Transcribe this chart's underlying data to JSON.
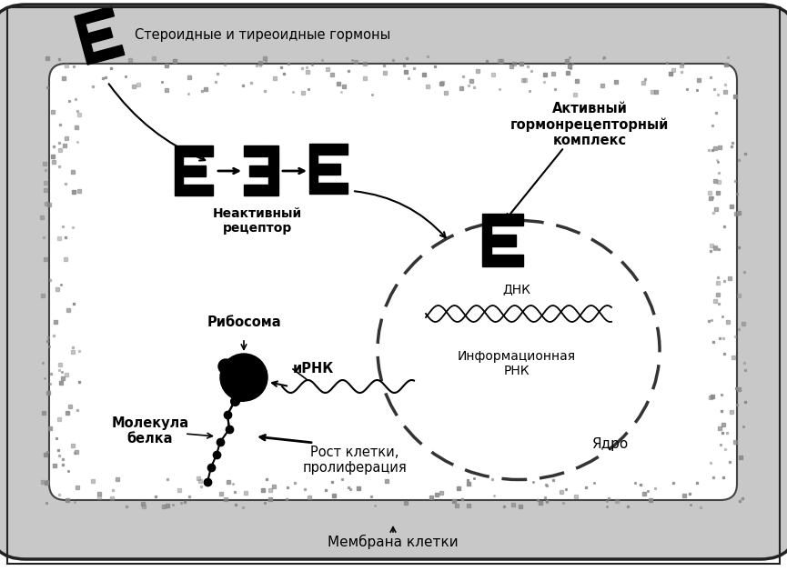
{
  "bg_color": "#d8d8d8",
  "cell_bg": "#ffffff",
  "labels": {
    "steroid_hormones": "Стероидные и тиреоидные гормоны",
    "inactive_receptor": "Неактивный\nрецептор",
    "active_complex": "Активный\nгормонрецепторный\nкомплекс",
    "dna": "ДНК",
    "mrna_info": "Информационная\nРНК",
    "nucleus": "Ядро",
    "ribosome": "Рибосома",
    "mrna": "иРНК",
    "protein": "Молекула\nбелка",
    "growth": "Рост клетки,\nпролиферация",
    "membrane": "Мембрана клетки"
  }
}
